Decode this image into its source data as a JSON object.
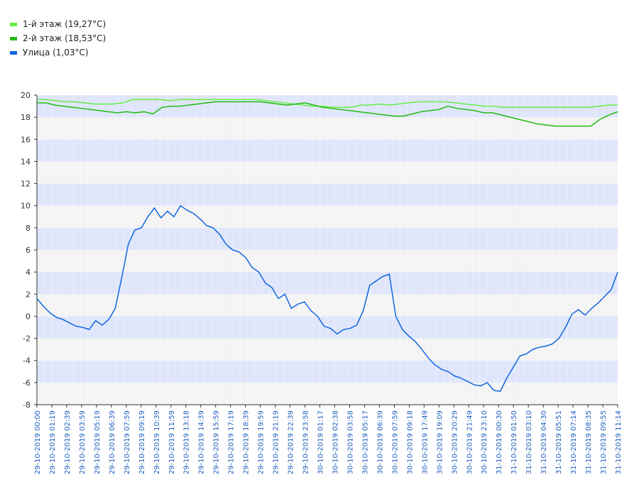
{
  "legend": [
    {
      "label": "1-й этаж (19,27°C)",
      "color": "#66ee44"
    },
    {
      "label": "2-й этаж (18,53°C)",
      "color": "#22bb11"
    },
    {
      "label": "Улица (1,03°C)",
      "color": "#1166dd"
    }
  ],
  "chart_data": {
    "type": "line",
    "ylim": [
      -8,
      20
    ],
    "yticks": [
      -8,
      -6,
      -4,
      -2,
      0,
      2,
      4,
      6,
      8,
      10,
      12,
      14,
      16,
      18,
      20
    ],
    "grid": true,
    "legend_position": "top-left",
    "x_tick_labels": [
      "29-10-2019 00:00",
      "29-10-2019 01:19",
      "29-10-2019 02:39",
      "29-10-2019 03:59",
      "29-10-2019 05:19",
      "29-10-2019 06:39",
      "29-10-2019 07:59",
      "29-10-2019 09:19",
      "29-10-2019 10:39",
      "29-10-2019 11:59",
      "29-10-2019 13:18",
      "29-10-2019 14:39",
      "29-10-2019 15:59",
      "29-10-2019 17:19",
      "29-10-2019 18:39",
      "29-10-2019 19:59",
      "29-10-2019 21:19",
      "29-10-2019 22:39",
      "29-10-2019 23:58",
      "30-10-2019 01:17",
      "30-10-2019 02:38",
      "30-10-2019 03:58",
      "30-10-2019 05:17",
      "30-10-2019 06:39",
      "30-10-2019 07:59",
      "30-10-2019 09:18",
      "30-10-2019 17:49",
      "30-10-2019 19:09",
      "30-10-2019 20:29",
      "30-10-2019 21:49",
      "30-10-2019 23:10",
      "31-10-2019 00:30",
      "31-10-2019 01:50",
      "31-10-2019 03:10",
      "31-10-2019 04:30",
      "31-10-2019 05:51",
      "31-10-2019 07:14",
      "31-10-2019 08:35",
      "31-10-2019 09:55",
      "31-10-2019 11:14"
    ],
    "series": [
      {
        "name": "1-й этаж (19,27°C)",
        "color": "#66ee44",
        "values": [
          19.6,
          19.6,
          19.5,
          19.4,
          19.4,
          19.3,
          19.2,
          19.2,
          19.2,
          19.3,
          19.6,
          19.6,
          19.6,
          19.6,
          19.5,
          19.6,
          19.6,
          19.6,
          19.6,
          19.6,
          19.6,
          19.6,
          19.6,
          19.6,
          19.5,
          19.4,
          19.3,
          19.2,
          19.1,
          19.0,
          19.0,
          18.9,
          18.9,
          18.9,
          19.1,
          19.1,
          19.2,
          19.1,
          19.2,
          19.3,
          19.4,
          19.4,
          19.4,
          19.4,
          19.3,
          19.2,
          19.1,
          19.0,
          19.0,
          18.9,
          18.9,
          18.9,
          18.9,
          18.9,
          18.9,
          18.9,
          18.9,
          18.9,
          18.9,
          19.0,
          19.1,
          19.1
        ]
      },
      {
        "name": "2-й этаж (18,53°C)",
        "color": "#22bb11",
        "values": [
          19.3,
          19.3,
          19.1,
          19.0,
          18.9,
          18.8,
          18.7,
          18.6,
          18.5,
          18.4,
          18.5,
          18.4,
          18.5,
          18.3,
          18.9,
          19.0,
          19.0,
          19.1,
          19.2,
          19.3,
          19.4,
          19.4,
          19.4,
          19.4,
          19.4,
          19.4,
          19.3,
          19.2,
          19.1,
          19.2,
          19.3,
          19.1,
          18.9,
          18.8,
          18.7,
          18.6,
          18.5,
          18.4,
          18.3,
          18.2,
          18.1,
          18.1,
          18.3,
          18.5,
          18.6,
          18.7,
          19.0,
          18.8,
          18.7,
          18.6,
          18.4,
          18.4,
          18.2,
          18.0,
          17.8,
          17.6,
          17.4,
          17.3,
          17.2,
          17.2,
          17.2,
          17.2,
          17.2,
          17.8,
          18.2,
          18.5
        ]
      },
      {
        "name": "Улица (1,03°C)",
        "color": "#1166dd",
        "values": [
          1.6,
          0.9,
          0.3,
          -0.1,
          -0.3,
          -0.6,
          -0.9,
          -1.0,
          -1.2,
          -0.4,
          -0.8,
          -0.3,
          0.7,
          3.5,
          6.5,
          7.8,
          8.0,
          9.0,
          9.8,
          8.9,
          9.5,
          9.0,
          10.0,
          9.6,
          9.3,
          8.8,
          8.2,
          8.0,
          7.4,
          6.5,
          6.0,
          5.8,
          5.3,
          4.4,
          4.0,
          3.0,
          2.6,
          1.6,
          2.0,
          0.7,
          1.1,
          1.3,
          0.5,
          0.0,
          -0.9,
          -1.1,
          -1.6,
          -1.2,
          -1.1,
          -0.8,
          0.5,
          2.8,
          3.2,
          3.6,
          3.8,
          0.0,
          -1.2,
          -1.8,
          -2.3,
          -3.0,
          -3.8,
          -4.4,
          -4.8,
          -5.0,
          -5.4,
          -5.6,
          -5.9,
          -6.2,
          -6.3,
          -6.0,
          -6.7,
          -6.8,
          -5.6,
          -4.6,
          -3.6,
          -3.4,
          -3.0,
          -2.8,
          -2.7,
          -2.5,
          -2.0,
          -1.0,
          0.2,
          0.6,
          0.1,
          0.7,
          1.2,
          1.8,
          2.4,
          4.0
        ]
      }
    ]
  }
}
